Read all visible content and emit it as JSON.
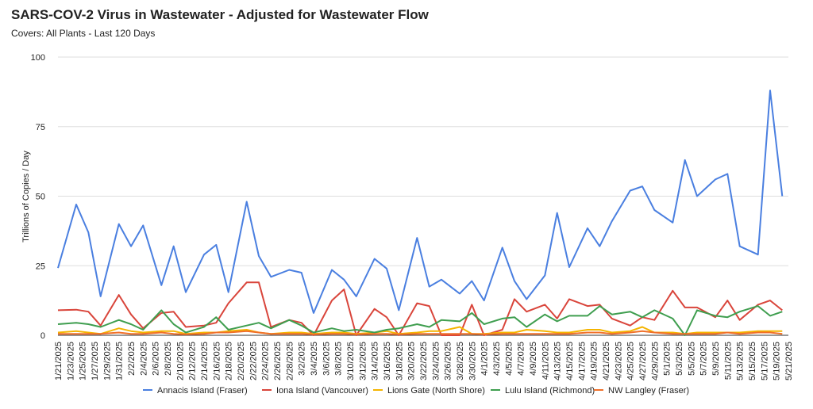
{
  "chart_data": {
    "type": "line",
    "title": "SARS-COV-2 Virus in Wastewater - Adjusted for Wastewater Flow",
    "subtitle": "Covers: All Plants - Last 120 Days",
    "y_label": "Trillions of Copies / Day",
    "x": [
      "1/21/2025",
      "1/24/2025",
      "1/26/2025",
      "1/28/2025",
      "1/31/2025",
      "2/2/2025",
      "2/4/2025",
      "2/7/2025",
      "2/9/2025",
      "2/11/2025",
      "2/14/2025",
      "2/16/2025",
      "2/18/2025",
      "2/21/2025",
      "2/23/2025",
      "2/25/2025",
      "2/28/2025",
      "3/2/2025",
      "3/4/2025",
      "3/7/2025",
      "3/9/2025",
      "3/11/2025",
      "3/14/2025",
      "3/16/2025",
      "3/18/2025",
      "3/21/2025",
      "3/23/2025",
      "3/25/2025",
      "3/28/2025",
      "3/30/2025",
      "4/1/2025",
      "4/4/2025",
      "4/6/2025",
      "4/8/2025",
      "4/11/2025",
      "4/13/2025",
      "4/15/2025",
      "4/18/2025",
      "4/20/2025",
      "4/22/2025",
      "4/25/2025",
      "4/27/2025",
      "4/29/2025",
      "5/2/2025",
      "5/4/2025",
      "5/6/2025",
      "5/9/2025",
      "5/11/2025",
      "5/13/2025",
      "5/16/2025",
      "5/18/2025",
      "5/20/2025"
    ],
    "series": [
      {
        "name": "Annacis Island (Fraser)",
        "color": "#4a7fe0",
        "values": [
          24.2,
          47,
          37,
          14,
          40,
          32,
          39.5,
          18,
          32,
          15.5,
          29,
          32.5,
          15.5,
          48,
          28.5,
          21,
          23.5,
          22.5,
          8,
          23.5,
          20,
          14,
          27.5,
          24,
          9,
          35,
          17.5,
          20,
          15,
          19.5,
          12.5,
          31.5,
          19.5,
          13,
          21.5,
          44,
          24.5,
          38.5,
          32,
          41,
          52,
          53.5,
          45,
          40.5,
          63,
          50,
          56,
          58,
          32,
          29,
          88,
          50
        ]
      },
      {
        "name": "Iona Island (Vancouver)",
        "color": "#d9453b",
        "values": [
          9,
          9.2,
          8.5,
          3.5,
          14.5,
          7.5,
          2.5,
          8,
          8.5,
          3,
          3.5,
          4.5,
          11.5,
          19,
          19,
          3,
          5.5,
          4.5,
          0,
          12.5,
          16.5,
          0,
          9.5,
          6.5,
          0,
          11.5,
          10.5,
          0,
          0,
          11,
          0,
          2,
          13,
          8.5,
          11,
          6,
          13,
          10.5,
          11,
          6,
          3.5,
          6.5,
          5.5,
          16,
          10,
          10,
          6.5,
          12.5,
          5.5,
          11,
          12.5,
          9
        ]
      },
      {
        "name": "Lions Gate (North Shore)",
        "color": "#f4b400",
        "values": [
          1,
          1.5,
          1,
          0.5,
          2.5,
          1.5,
          1,
          1.5,
          1.5,
          0.5,
          1,
          1,
          1.5,
          2,
          1,
          0.5,
          1,
          1,
          0.5,
          1,
          1,
          0.5,
          1,
          1.5,
          0.5,
          1,
          1.5,
          1.5,
          3,
          0.5,
          0.5,
          1,
          1,
          2,
          1.5,
          1,
          1,
          2,
          2,
          1,
          1.5,
          3,
          1,
          1,
          0.5,
          1,
          1,
          1,
          1,
          1.5,
          1.5,
          1.5
        ]
      },
      {
        "name": "Lulu Island (Richmond)",
        "color": "#3f9e4f",
        "values": [
          4,
          4.5,
          4,
          3,
          5.5,
          4,
          2,
          9,
          4,
          1,
          3,
          6.5,
          2,
          3.5,
          4.5,
          2.5,
          5.5,
          3.5,
          1,
          2.5,
          1.5,
          2,
          1,
          2,
          2.5,
          4,
          3,
          5.5,
          5,
          8,
          4,
          6,
          6.5,
          3,
          7.5,
          5,
          7,
          7,
          10.5,
          7.5,
          8.5,
          6.5,
          9,
          6,
          0,
          9,
          7,
          6.5,
          8.5,
          10.5,
          7,
          8.5
        ]
      },
      {
        "name": "NW Langley (Fraser)",
        "color": "#f0702a",
        "values": [
          0.5,
          0.5,
          0.5,
          0.5,
          1,
          0.5,
          0.5,
          1,
          0.5,
          0.3,
          0.5,
          1,
          1,
          1.5,
          1,
          0.5,
          0.5,
          0.5,
          0.3,
          0.5,
          0.5,
          0.3,
          0.5,
          0.5,
          0.3,
          0.5,
          0.5,
          0.5,
          0.5,
          0.5,
          0.3,
          0.5,
          0.5,
          0.5,
          0.5,
          0.5,
          0.5,
          1,
          1,
          0.5,
          1,
          1.5,
          1,
          0.5,
          0.5,
          0.5,
          0.5,
          1,
          0.5,
          1,
          1,
          0.5
        ]
      }
    ],
    "ylim": [
      0,
      100
    ],
    "yticks": [
      0,
      25,
      50,
      75,
      100
    ],
    "grid": true,
    "xlim": [
      "1/21/2025",
      "5/21/2025"
    ],
    "xticks": [
      "1/21/2025",
      "1/23/2025",
      "1/25/2025",
      "1/27/2025",
      "1/29/2025",
      "1/31/2025",
      "2/2/2025",
      "2/4/2025",
      "2/6/2025",
      "2/8/2025",
      "2/10/2025",
      "2/12/2025",
      "2/14/2025",
      "2/16/2025",
      "2/18/2025",
      "2/20/2025",
      "2/22/2025",
      "2/24/2025",
      "2/26/2025",
      "2/28/2025",
      "3/2/2025",
      "3/4/2025",
      "3/6/2025",
      "3/8/2025",
      "3/10/2025",
      "3/12/2025",
      "3/14/2025",
      "3/16/2025",
      "3/18/2025",
      "3/20/2025",
      "3/22/2025",
      "3/24/2025",
      "3/26/2025",
      "3/28/2025",
      "3/30/2025",
      "4/1/2025",
      "4/3/2025",
      "4/5/2025",
      "4/7/2025",
      "4/9/2025",
      "4/11/2025",
      "4/13/2025",
      "4/15/2025",
      "4/17/2025",
      "4/19/2025",
      "4/21/2025",
      "4/23/2025",
      "4/25/2025",
      "4/27/2025",
      "4/29/2025",
      "5/1/2025",
      "5/3/2025",
      "5/5/2025",
      "5/7/2025",
      "5/9/2025",
      "5/11/2025",
      "5/13/2025",
      "5/15/2025",
      "5/17/2025",
      "5/19/2025",
      "5/21/2025"
    ],
    "legend": "bottom"
  }
}
